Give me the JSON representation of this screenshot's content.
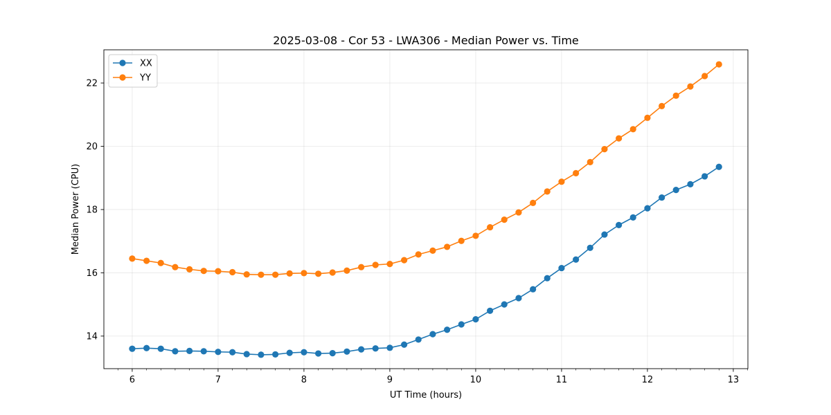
{
  "chart_data": {
    "type": "line",
    "title": "2025-03-08 - Cor 53 - LWA306 - Median Power vs. Time",
    "xlabel": "UT Time (hours)",
    "ylabel": "Median Power (CPU)",
    "xlim": [
      5.67,
      13.17
    ],
    "ylim": [
      12.97,
      23.05
    ],
    "xticks": [
      6,
      7,
      8,
      9,
      10,
      11,
      12,
      13
    ],
    "xtick_labels": [
      "6",
      "7",
      "8",
      "9",
      "10",
      "11",
      "12",
      "13"
    ],
    "yticks": [
      14,
      16,
      18,
      20,
      22
    ],
    "ytick_labels": [
      "14",
      "16",
      "18",
      "20",
      "22"
    ],
    "grid": true,
    "legend_position": "top-left",
    "x": [
      6.0,
      6.167,
      6.333,
      6.5,
      6.667,
      6.833,
      7.0,
      7.167,
      7.333,
      7.5,
      7.667,
      7.833,
      8.0,
      8.167,
      8.333,
      8.5,
      8.667,
      8.833,
      9.0,
      9.167,
      9.333,
      9.5,
      9.667,
      9.833,
      10.0,
      10.167,
      10.333,
      10.5,
      10.667,
      10.833,
      11.0,
      11.167,
      11.333,
      11.5,
      11.667,
      11.833,
      12.0,
      12.167,
      12.333,
      12.5,
      12.667,
      12.833
    ],
    "series": [
      {
        "name": "XX",
        "color": "#1f77b4",
        "values": [
          13.6,
          13.62,
          13.6,
          13.52,
          13.53,
          13.52,
          13.5,
          13.49,
          13.43,
          13.41,
          13.42,
          13.47,
          13.49,
          13.45,
          13.46,
          13.51,
          13.58,
          13.61,
          13.63,
          13.73,
          13.89,
          14.06,
          14.2,
          14.37,
          14.53,
          14.8,
          15.0,
          15.2,
          15.48,
          15.83,
          16.15,
          16.42,
          16.79,
          17.21,
          17.51,
          17.75,
          18.04,
          18.38,
          18.62,
          18.8,
          19.05,
          19.35
        ]
      },
      {
        "name": "YY",
        "color": "#ff7f0e",
        "values": [
          16.45,
          16.38,
          16.31,
          16.18,
          16.11,
          16.06,
          16.05,
          16.02,
          15.95,
          15.94,
          15.94,
          15.98,
          15.99,
          15.97,
          16.01,
          16.07,
          16.18,
          16.25,
          16.28,
          16.4,
          16.58,
          16.7,
          16.82,
          17.01,
          17.17,
          17.44,
          17.68,
          17.91,
          18.21,
          18.57,
          18.88,
          19.15,
          19.5,
          19.91,
          20.25,
          20.54,
          20.9,
          21.27,
          21.6,
          21.89,
          22.22,
          22.59
        ]
      }
    ]
  }
}
